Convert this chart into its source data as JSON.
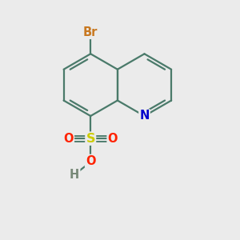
{
  "bg_color": "#ebebeb",
  "bond_color": "#4a7a6a",
  "bond_width": 1.6,
  "atom_colors": {
    "Br": "#c87820",
    "N": "#0000cc",
    "S": "#cccc00",
    "O": "#ff2200",
    "H": "#778877"
  },
  "font_size": 10.5,
  "figsize": [
    3.0,
    3.0
  ],
  "dpi": 100,
  "bl": 0.62
}
